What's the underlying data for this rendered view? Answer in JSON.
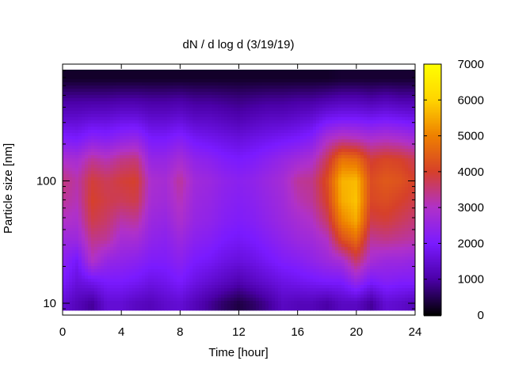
{
  "chart_data": {
    "type": "heatmap",
    "title": "dN / d log d (3/19/19)",
    "xlabel": "Time [hour]",
    "ylabel": "Particle size [nm]",
    "xlim": [
      0,
      24
    ],
    "x_ticks": [
      0,
      4,
      8,
      12,
      16,
      20,
      24
    ],
    "ylim": [
      8,
      900
    ],
    "y_scale": "log",
    "y_tick_labels": [
      {
        "value": 10,
        "label": "10"
      },
      {
        "value": 100,
        "label": "100"
      }
    ],
    "colorbar": {
      "min": 0,
      "max": 7000,
      "ticks": [
        0,
        1000,
        2000,
        3000,
        4000,
        5000,
        6000,
        7000
      ],
      "colormap": "gnuplot-hot",
      "colors": [
        "#000000",
        "#4b00a8",
        "#7a1aff",
        "#b031c8",
        "#d6402a",
        "#ee8000",
        "#ffd400",
        "#ffff00"
      ]
    },
    "time_hours": [
      0,
      1,
      2,
      3,
      4,
      5,
      6,
      7,
      8,
      9,
      10,
      11,
      12,
      13,
      14,
      15,
      16,
      17,
      18,
      19,
      20,
      21,
      22,
      23,
      24
    ],
    "size_nm": [
      10,
      15,
      22,
      33,
      47,
      68,
      100,
      150,
      220,
      330,
      470,
      680
    ],
    "values": [
      [
        1500,
        1200,
        900,
        1500,
        1500,
        1300,
        1200,
        1400,
        1500,
        1200,
        900,
        600,
        400,
        600,
        900,
        1300,
        1200,
        1200,
        1000,
        1300,
        1300,
        900,
        1500,
        1400,
        1200
      ],
      [
        2000,
        1600,
        1800,
        2000,
        2000,
        1900,
        1700,
        1800,
        2000,
        1700,
        1500,
        1300,
        1100,
        1300,
        1500,
        1700,
        1800,
        1900,
        2000,
        2000,
        2500,
        2000,
        2200,
        2100,
        2100
      ],
      [
        2300,
        1900,
        3000,
        2500,
        2400,
        2300,
        2100,
        2100,
        2300,
        2000,
        1900,
        1700,
        1600,
        1700,
        1900,
        2100,
        2200,
        2400,
        2600,
        2800,
        3600,
        2800,
        2600,
        2600,
        2500
      ],
      [
        2600,
        2600,
        3400,
        3300,
        2800,
        2800,
        2400,
        2300,
        2600,
        2300,
        2200,
        2000,
        1900,
        2000,
        2200,
        2400,
        2600,
        2700,
        3000,
        4200,
        4700,
        3300,
        3400,
        3300,
        3200
      ],
      [
        3000,
        2900,
        3800,
        3600,
        3200,
        3300,
        2600,
        2500,
        2900,
        2500,
        2400,
        2200,
        2100,
        2200,
        2400,
        2600,
        2800,
        3000,
        3600,
        5000,
        5500,
        3800,
        3900,
        3700,
        3500
      ],
      [
        3300,
        3100,
        4000,
        3800,
        3700,
        3800,
        2800,
        2700,
        3100,
        2600,
        2500,
        2300,
        2200,
        2300,
        2500,
        2700,
        3100,
        3300,
        4000,
        5500,
        5800,
        4100,
        4200,
        4000,
        3800
      ],
      [
        3500,
        3200,
        3900,
        3700,
        3900,
        4000,
        2900,
        2800,
        3300,
        2700,
        2600,
        2400,
        2300,
        2400,
        2600,
        2800,
        3300,
        3400,
        4200,
        5600,
        5700,
        4200,
        4400,
        4300,
        4000
      ],
      [
        2900,
        2800,
        3300,
        3100,
        3400,
        3500,
        2500,
        2500,
        2800,
        2400,
        2300,
        2100,
        2000,
        2100,
        2300,
        2500,
        2700,
        2900,
        3700,
        4800,
        4700,
        3900,
        4100,
        4000,
        3700
      ],
      [
        2100,
        2000,
        2300,
        2200,
        2400,
        2500,
        2000,
        2000,
        2200,
        1900,
        1800,
        1700,
        1600,
        1700,
        1800,
        1900,
        2000,
        2200,
        2900,
        3200,
        3100,
        2900,
        3000,
        2900,
        2700
      ],
      [
        1400,
        1400,
        1500,
        1500,
        1600,
        1600,
        1400,
        1400,
        1500,
        1300,
        1300,
        1200,
        1100,
        1200,
        1300,
        1300,
        1400,
        1500,
        1800,
        1900,
        1900,
        1800,
        1900,
        1800,
        1700
      ],
      [
        900,
        900,
        900,
        900,
        950,
        950,
        900,
        900,
        950,
        850,
        850,
        800,
        750,
        800,
        850,
        850,
        900,
        900,
        1000,
        1100,
        1100,
        1000,
        1100,
        1000,
        1000
      ],
      [
        250,
        250,
        250,
        250,
        250,
        250,
        250,
        250,
        250,
        250,
        250,
        250,
        250,
        250,
        250,
        250,
        250,
        250,
        250,
        300,
        300,
        300,
        300,
        300,
        300
      ]
    ]
  }
}
